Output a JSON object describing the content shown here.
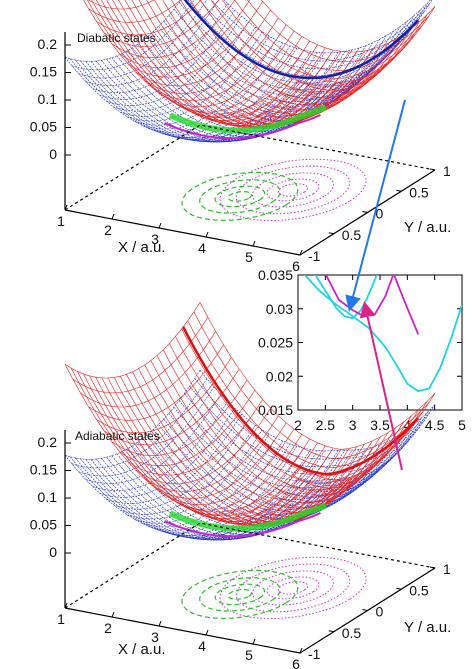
{
  "chart_data": [
    {
      "type": "surface3d",
      "title": "Diabatic states",
      "xlabel": "X / a.u.",
      "ylabel": "Y / a.u.",
      "x_ticks": [
        "1",
        "2",
        "3",
        "4",
        "5",
        "6"
      ],
      "y_ticks": [
        "-1",
        "0.5",
        "0",
        "0.5",
        "1"
      ],
      "z_ticks": [
        "0",
        "0.05",
        "0.1",
        "0.15",
        "0.2"
      ],
      "xlim": [
        1,
        6
      ],
      "ylim": [
        -1,
        1
      ],
      "zlim": [
        0,
        0.2
      ],
      "series": [
        {
          "name": "",
          "color": "#2233cc",
          "surface": "mesh",
          "style": "dashed"
        },
        {
          "name": "",
          "color": "#ee2222",
          "surface": "mesh",
          "style": "solid"
        },
        {
          "name": "",
          "color": "#22dd22",
          "surface": "intersection seam",
          "style": "solid"
        },
        {
          "name": "",
          "color": "#cc22cc",
          "surface": "intersection seam",
          "style": "solid"
        }
      ],
      "contours": [
        {
          "color": "#33bb33",
          "style": "dashed"
        },
        {
          "color": "#cc33cc",
          "style": "dotted"
        }
      ]
    },
    {
      "type": "line",
      "title": "",
      "xlabel": "",
      "ylabel": "",
      "xlim": [
        2,
        5
      ],
      "ylim": [
        0.015,
        0.035
      ],
      "x_ticks": [
        "2",
        "2.5",
        "3",
        "3.5",
        "4",
        "4.5",
        "5"
      ],
      "y_ticks": [
        "0.015",
        "0.02",
        "0.025",
        "0.03",
        "0.035"
      ],
      "series": [
        {
          "name": "",
          "color": "#22d4e0",
          "x": [
            2.1,
            2.4,
            2.7,
            3.0,
            3.3,
            3.6,
            3.8,
            4.0,
            4.2,
            4.4,
            4.6,
            4.8,
            5.0
          ],
          "y": [
            0.0352,
            0.0326,
            0.0306,
            0.0289,
            0.0271,
            0.0243,
            0.0217,
            0.0189,
            0.0178,
            0.0182,
            0.0212,
            0.0256,
            0.0306
          ]
        },
        {
          "name": "",
          "color": "#22d4e0",
          "x": [
            2.3,
            2.5,
            2.7,
            2.85,
            3.0,
            3.15,
            3.25,
            3.35,
            3.45
          ],
          "y": [
            0.0352,
            0.0327,
            0.0301,
            0.0289,
            0.0286,
            0.0298,
            0.0313,
            0.0332,
            0.0352
          ]
        },
        {
          "name": "",
          "color": "#cc22cc",
          "x": [
            2.5,
            2.75,
            3.0,
            3.2,
            3.4,
            3.6,
            3.75
          ],
          "y": [
            0.0352,
            0.0313,
            0.0298,
            0.0289,
            0.0291,
            0.0319,
            0.0352
          ]
        },
        {
          "name": "",
          "color": "#cc22cc",
          "x": [
            3.75,
            3.85,
            4.0,
            4.2
          ],
          "y": [
            0.0352,
            0.0331,
            0.0301,
            0.0262
          ]
        }
      ]
    },
    {
      "type": "surface3d",
      "title": "Adiabatic states",
      "xlabel": "X / a.u.",
      "ylabel": "Y / a.u.",
      "x_ticks": [
        "1",
        "2",
        "3",
        "4",
        "5",
        "6"
      ],
      "y_ticks": [
        "-1",
        "0.5",
        "0",
        "0.5",
        "1"
      ],
      "z_ticks": [
        "0",
        "0.05",
        "0.1",
        "0.15",
        "0.2"
      ],
      "xlim": [
        1,
        6
      ],
      "ylim": [
        -1,
        1
      ],
      "zlim": [
        0,
        0.2
      ],
      "series": [
        {
          "name": "",
          "color": "#ee2222",
          "surface": "mesh",
          "style": "solid"
        },
        {
          "name": "",
          "color": "#2233cc",
          "surface": "mesh",
          "style": "dashed"
        },
        {
          "name": "",
          "color": "#22dd22",
          "surface": "intersection seam",
          "style": "solid"
        },
        {
          "name": "",
          "color": "#cc22cc",
          "surface": "intersection seam",
          "style": "solid"
        }
      ],
      "contours": [
        {
          "color": "#33bb33",
          "style": "dashed"
        },
        {
          "color": "#cc33cc",
          "style": "dotted"
        }
      ]
    }
  ]
}
